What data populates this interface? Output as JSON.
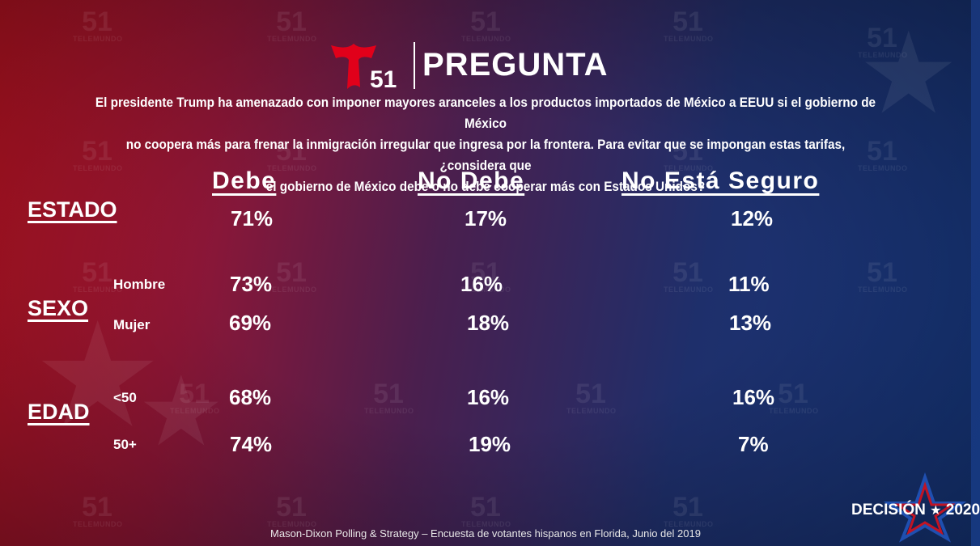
{
  "header": {
    "logo_number": "51",
    "title": "PREGUNTA"
  },
  "watermark": {
    "number": "51",
    "word": "TELEMUNDO"
  },
  "question": {
    "line1": "El presidente Trump ha amenazado con imponer mayores aranceles a los productos importados de México a EEUU si el gobierno de México",
    "line2": "no coopera más para frenar la inmigración irregular que ingresa por la frontera. Para evitar que se impongan estas tarifas, ¿considera que",
    "line3": "el gobierno de México debe o no debe cooperar más con Estados Unidos?"
  },
  "columns": [
    "Debe",
    "No Debe",
    "No Está Seguro"
  ],
  "rows": {
    "estado": {
      "label": "ESTADO",
      "values": [
        "71%",
        "17%",
        "12%"
      ]
    },
    "sexo": {
      "label": "SEXO",
      "hombre": {
        "label": "Hombre",
        "values": [
          "73%",
          "16%",
          "11%"
        ]
      },
      "mujer": {
        "label": "Mujer",
        "values": [
          "69%",
          "18%",
          "13%"
        ]
      }
    },
    "edad": {
      "label": "EDAD",
      "under50": {
        "label": "<50",
        "values": [
          "68%",
          "16%",
          "16%"
        ]
      },
      "over50": {
        "label": "50+",
        "values": [
          "74%",
          "19%",
          "7%"
        ]
      }
    }
  },
  "footer": {
    "source": "Mason-Dixon  Polling & Strategy – Encuesta de votantes hispanos en Florida, Junio del 2019"
  },
  "badge": {
    "word": "DECISIÓN",
    "year": "2020"
  },
  "colors": {
    "brand_red": "#e1001a",
    "star_blue": "#1f4fb0",
    "text": "#ffffff"
  }
}
